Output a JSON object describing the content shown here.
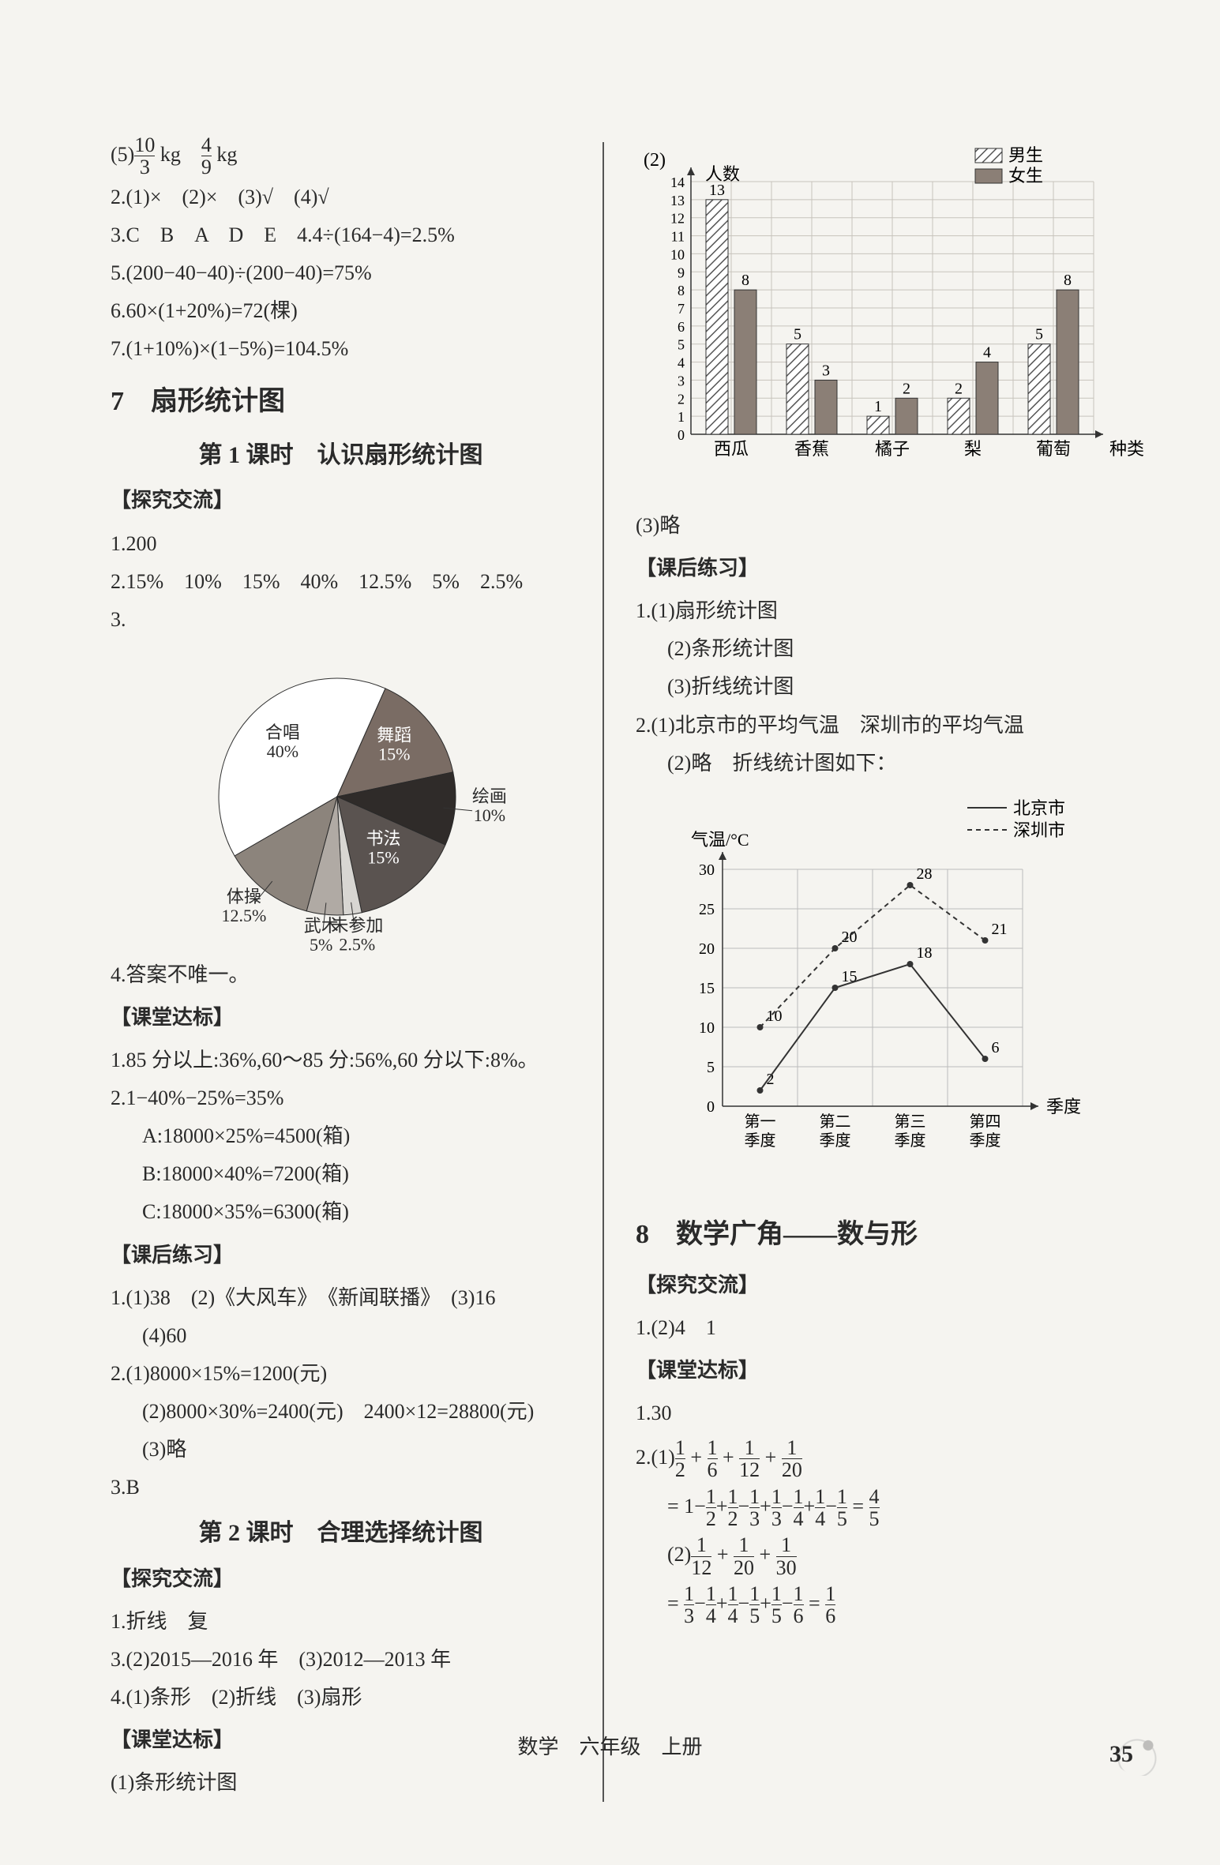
{
  "left": {
    "line_5": "(5)⁠10/3 kg　4/9 kg",
    "line_2_tf": "2.(1)×　(2)×　(3)√　(4)√",
    "line_3": "3.C　B　A　D　E　4.4÷(164−4)=2.5%",
    "line_5b": "5.(200−40−40)÷(200−40)=75%",
    "line_6": "6.60×(1+20%)=72(棵)",
    "line_7": "7.(1+10%)×(1−5%)=104.5%",
    "sec7_title": "7　扇形统计图",
    "sec7_sub1": "第 1 课时　认识扇形统计图",
    "tj_head": "【探究交流】",
    "tj_1": "1.200",
    "tj_2": "2.15%　10%　15%　40%　12.5%　5%　2.5%",
    "tj_3": "3.",
    "pie": {
      "slices": [
        {
          "label": "合唱\n40%",
          "value": 40,
          "color": "#ffffff",
          "stroke": "#333"
        },
        {
          "label": "舞蹈\n15%",
          "value": 15,
          "color": "#7a6c64"
        },
        {
          "label": "绘画\n10%",
          "value": 10,
          "color": "#2f2b29"
        },
        {
          "label": "书法\n15%",
          "value": 15,
          "color": "#5a5350"
        },
        {
          "label": "未参加\n2.5%",
          "value": 2.5,
          "color": "#d8d6d2"
        },
        {
          "label": "武术\n5%",
          "value": 5,
          "color": "#b0aaa4"
        },
        {
          "label": "体操\n12.5%",
          "value": 12.5,
          "color": "#8c847c"
        }
      ],
      "start_angle": 150,
      "radius": 150
    },
    "tj_4": "4.答案不唯一。",
    "kt_head": "【课堂达标】",
    "kt_1": "1.85 分以上:36%,60～85 分:56%,60 分以下:8%。",
    "kt_2": "2.1−40%−25%=35%",
    "kt_2a": "A:18000×25%=4500(箱)",
    "kt_2b": "B:18000×40%=7200(箱)",
    "kt_2c": "C:18000×35%=6300(箱)",
    "kh_head": "【课后练习】",
    "kh_1": "1.(1)38　(2)《大风车》　《新闻联播》　(3)16",
    "kh_1b": "(4)60",
    "kh_2a": "2.(1)8000×15%=1200(元)",
    "kh_2b": "(2)8000×30%=2400(元)　2400×12=28800(元)",
    "kh_2c": "(3)略",
    "kh_3": "3.B",
    "sec7_sub2": "第 2 课时　合理选择统计图",
    "tj2_head": "【探究交流】",
    "tj2_1": "1.折线　复",
    "tj2_3": "3.(2)2015—2016 年　(3)2012—2013 年",
    "tj2_4": "4.(1)条形　(2)折线　(3)扇形",
    "kt2_head": "【课堂达标】",
    "kt2_1": "(1)条形统计图"
  },
  "right": {
    "barlabel": "(2)",
    "bar_ylabel": "人数",
    "legend_m": "男生",
    "legend_f": "女生",
    "bar": {
      "categories": [
        "西瓜",
        "香蕉",
        "橘子",
        "梨",
        "葡萄"
      ],
      "male": [
        13,
        5,
        1,
        2,
        5
      ],
      "female": [
        8,
        3,
        2,
        4,
        8
      ],
      "ymax": 14,
      "male_fill": "hatch",
      "female_fill": "#8b7f76",
      "grid": "#c7c3bc"
    },
    "bar_3": "(3)略",
    "kh_head": "【课后练习】",
    "kh_1a": "1.(1)扇形统计图",
    "kh_1b": "(2)条形统计图",
    "kh_1c": "(3)折线统计图",
    "kh_2a": "2.(1)北京市的平均气温　深圳市的平均气温",
    "kh_2b": "(2)略　折线统计图如下：",
    "line_legend_b": "北京市",
    "line_legend_s": "深圳市",
    "line": {
      "ylabel": "气温/°C",
      "xlabel": "季度",
      "xticks": [
        "第一\n季度",
        "第二\n季度",
        "第三\n季度",
        "第四\n季度"
      ],
      "yticks": [
        0,
        5,
        10,
        15,
        20,
        25,
        30
      ],
      "beijing": [
        2,
        15,
        18,
        6
      ],
      "shenzhen": [
        10,
        20,
        28,
        21
      ],
      "beijing_labels": [
        "2",
        "15",
        "18",
        "6"
      ],
      "shenzhen_labels": [
        "10",
        "20",
        "28",
        "21"
      ]
    },
    "sec8_title": "8　数学广角——数与形",
    "tj_head": "【探究交流】",
    "tj_1": "1.(2)4　1",
    "kt_head": "【课堂达标】",
    "kt_1": "1.30",
    "kt_2_1_lhs": "2.(1)",
    "frac_sum1": [
      "1/2",
      "1/6",
      "1/12",
      "1/20"
    ],
    "frac_eq1_rhs": "4/5",
    "frac_eq1_text": "=1−1/2+1/2−1/3+1/3−1/4+1/4−1/5=4/5",
    "kt_2_2_lhs": "(2)",
    "frac_sum2": [
      "1/12",
      "1/20",
      "1/30"
    ],
    "frac_eq2_text": "=1/3−1/4+1/4−1/5+1/5−1/6=1/6"
  },
  "footer": "数学　六年级　上册",
  "page_number": "35"
}
